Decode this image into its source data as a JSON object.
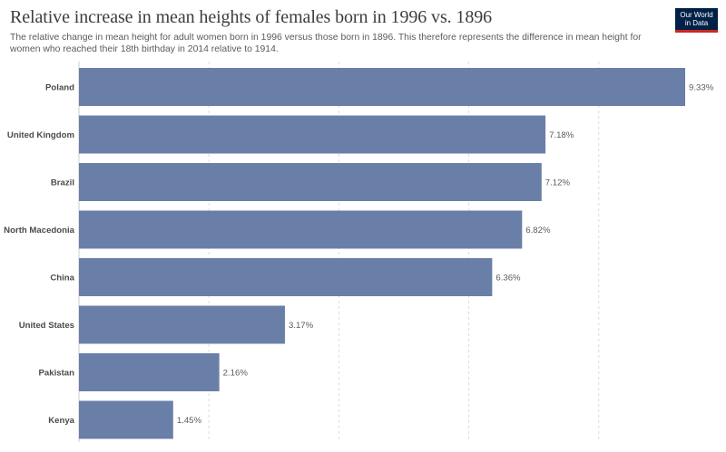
{
  "title": "Relative increase in mean heights of females born in 1996 vs. 1896",
  "subtitle": "The relative change in mean height for adult women born in 1996 versus those born in 1896. This therefore represents the difference in mean height for women who reached their 18th birthday in 2014 relative to 1914.",
  "logo": {
    "line1": "Our World",
    "line2": "in Data"
  },
  "colors": {
    "bar": "#6a7fa8",
    "grid": "#dddddd",
    "logo_bg": "#002147",
    "logo_accent": "#ce261e"
  },
  "chart_data": {
    "type": "bar",
    "orientation": "horizontal",
    "categories": [
      "Poland",
      "United Kingdom",
      "Brazil",
      "North Macedonia",
      "China",
      "United States",
      "Pakistan",
      "Kenya"
    ],
    "values": [
      9.33,
      7.18,
      7.12,
      6.82,
      6.36,
      3.17,
      2.16,
      1.45
    ],
    "value_labels": [
      "9.33%",
      "7.18%",
      "7.12%",
      "6.82%",
      "6.36%",
      "3.17%",
      "2.16%",
      "1.45%"
    ],
    "xlim": [
      0,
      10
    ],
    "grid": true,
    "legend": "none"
  }
}
